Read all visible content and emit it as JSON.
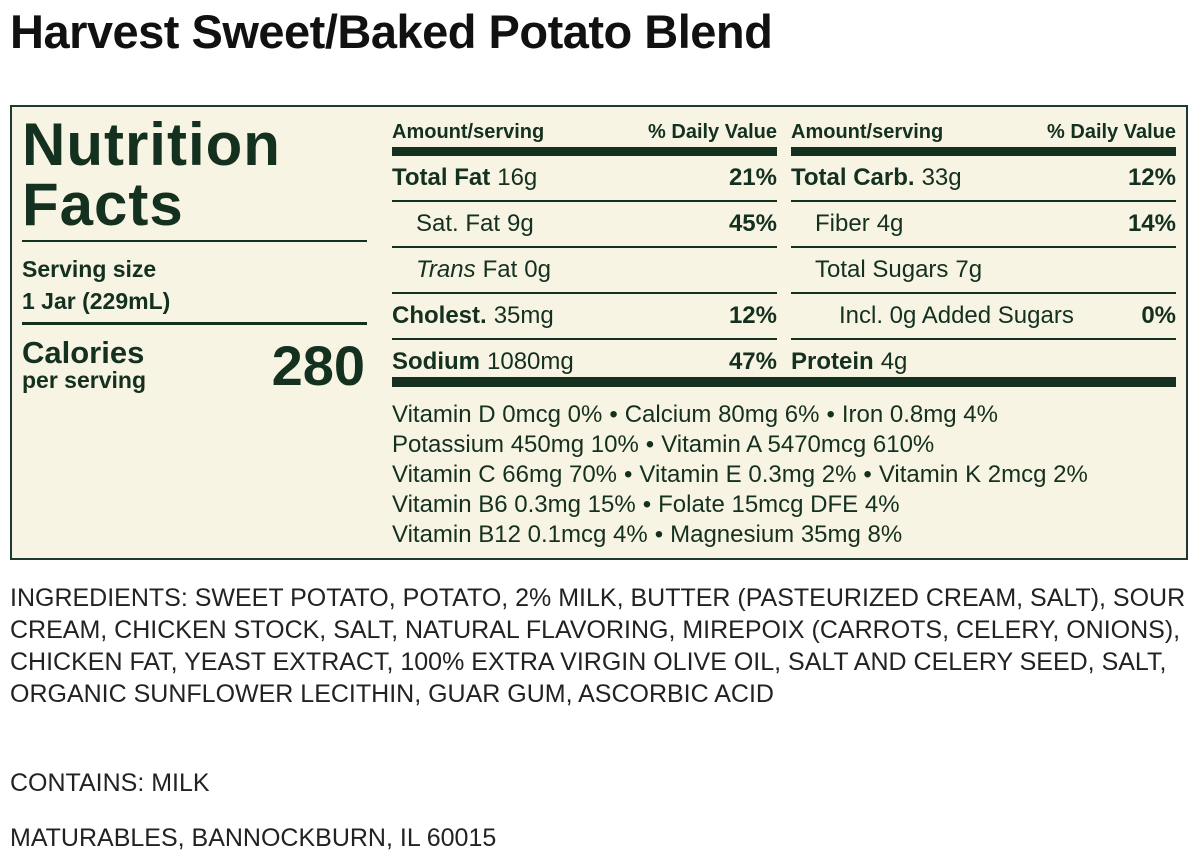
{
  "title": "Harvest Sweet/Baked Potato Blend",
  "label": {
    "heading": "Nutrition Facts",
    "serving_size_label": "Serving size",
    "serving_size": "1 Jar (229mL)",
    "calories_label": "Calories",
    "calories_sub": "per serving",
    "calories": 280,
    "columns": [
      {
        "header_amount": "Amount/serving",
        "header_dv": "% Daily Value",
        "rows": [
          {
            "name": [
              {
                "text": "Total Fat"
              }
            ],
            "amount": "16g",
            "dv": "21%",
            "bold": true,
            "indent": 0
          },
          {
            "name": [
              {
                "text": "Sat. Fat"
              }
            ],
            "amount": "9g",
            "dv": "45%",
            "bold": false,
            "indent": 1
          },
          {
            "name": [
              {
                "text": "Trans",
                "italic": true
              },
              {
                "text": "Fat"
              }
            ],
            "amount": "0g",
            "bold": false,
            "indent": 1
          },
          {
            "name": [
              {
                "text": "Cholest."
              }
            ],
            "amount": "35mg",
            "dv": "12%",
            "bold": true,
            "indent": 0
          },
          {
            "name": [
              {
                "text": "Sodium"
              }
            ],
            "amount": "1080mg",
            "dv": "47%",
            "bold": true,
            "indent": 0
          }
        ]
      },
      {
        "header_amount": "Amount/serving",
        "header_dv": "% Daily Value",
        "rows": [
          {
            "name": [
              {
                "text": "Total Carb."
              }
            ],
            "amount": "33g",
            "dv": "12%",
            "bold": true,
            "indent": 0
          },
          {
            "name": [
              {
                "text": "Fiber"
              }
            ],
            "amount": "4g",
            "dv": "14%",
            "bold": false,
            "indent": 1
          },
          {
            "name": [
              {
                "text": "Total Sugars"
              }
            ],
            "amount": "7g",
            "bold": false,
            "indent": 1
          },
          {
            "name": [
              {
                "text": "Incl. 0g Added Sugars"
              }
            ],
            "amount": "",
            "dv": "0%",
            "bold": false,
            "indent": 2
          },
          {
            "name": [
              {
                "text": "Protein"
              }
            ],
            "amount": "4g",
            "bold": true,
            "indent": 0
          }
        ]
      }
    ],
    "separator": "•",
    "vitamin_lines": [
      [
        "Vitamin D 0mcg 0%",
        "Calcium 80mg 6%",
        "Iron 0.8mg 4%"
      ],
      [
        "Potassium 450mg 10%",
        "Vitamin A 5470mcg 610%"
      ],
      [
        "Vitamin C 66mg 70%",
        "Vitamin E 0.3mg 2%",
        "Vitamin K 2mcg 2%"
      ],
      [
        "Vitamin B6 0.3mg 15%",
        "Folate 15mcg DFE 4%"
      ],
      [
        "Vitamin B12 0.1mcg 4%",
        "Magnesium 35mg 8%"
      ]
    ]
  },
  "ingredients": "INGREDIENTS: SWEET POTATO, POTATO, 2% MILK, BUTTER (PASTEURIZED CREAM, SALT), SOUR CREAM, CHICKEN STOCK, SALT, NATURAL FLAVORING, MIREPOIX (CARROTS, CELERY, ONIONS), CHICKEN FAT, YEAST EXTRACT, 100% EXTRA VIRGIN OLIVE OIL, SALT AND CELERY SEED, SALT, ORGANIC SUNFLOWER LECITHIN, GUAR GUM, ASCORBIC ACID",
  "contains": "CONTAINS: MILK",
  "address": "MATURABLES, BANNOCKBURN, IL 60015"
}
